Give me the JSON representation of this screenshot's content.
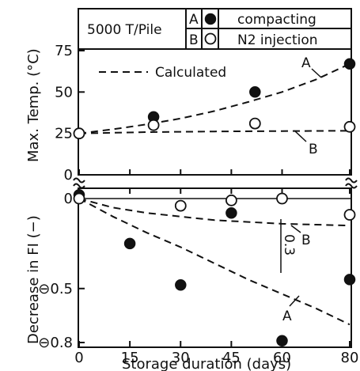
{
  "chart_data": [
    {
      "type": "scatter",
      "panel": "top",
      "ylabel": "Max. Temp. (°C)",
      "ylim": [
        0,
        80
      ],
      "yticks": [
        "0",
        "25",
        "50",
        "75"
      ],
      "legend": {
        "title": "5000 T/Pile",
        "entries": [
          {
            "key": "A",
            "marker": "filled-circle",
            "label": "compacting"
          },
          {
            "key": "B",
            "marker": "open-circle",
            "label": "N2 injection"
          }
        ]
      },
      "annotations": {
        "calculated": "Calculated",
        "curve_a": "A",
        "curve_b": "B"
      },
      "series": [
        {
          "name": "A",
          "marker": "filled",
          "points": [
            [
              0,
              25
            ],
            [
              22,
              35
            ],
            [
              52,
              50
            ],
            [
              80,
              67
            ]
          ]
        },
        {
          "name": "B",
          "marker": "open",
          "points": [
            [
              0,
              25
            ],
            [
              22,
              30
            ],
            [
              52,
              31
            ],
            [
              80,
              29
            ]
          ]
        }
      ],
      "curves": [
        {
          "name": "A",
          "points": [
            [
              0,
              25
            ],
            [
              10,
              27.5
            ],
            [
              20,
              30.5
            ],
            [
              30,
              34
            ],
            [
              40,
              38.5
            ],
            [
              50,
              44
            ],
            [
              60,
              50
            ],
            [
              70,
              57.5
            ],
            [
              80,
              67
            ]
          ]
        },
        {
          "name": "B",
          "points": [
            [
              0,
              25
            ],
            [
              20,
              25.8
            ],
            [
              40,
              26.2
            ],
            [
              60,
              26.4
            ],
            [
              80,
              26.6
            ]
          ]
        }
      ]
    },
    {
      "type": "scatter",
      "panel": "bottom",
      "xlabel": "Storage duration (days)",
      "ylabel": "Decrease in FI (−)",
      "xlim": [
        0,
        80
      ],
      "ylim": [
        0,
        0.82
      ],
      "xticks": [
        "0",
        "15",
        "30",
        "45",
        "60",
        "80"
      ],
      "yticks": [
        "0",
        "⊖0.5",
        "⊖0.8"
      ],
      "annotations": {
        "gap": "0.3",
        "curve_a": "A",
        "curve_b": "B"
      },
      "series": [
        {
          "name": "A",
          "marker": "filled",
          "points": [
            [
              0,
              -0.02
            ],
            [
              15,
              0.25
            ],
            [
              30,
              0.48
            ],
            [
              45,
              0.08
            ],
            [
              60,
              0.79
            ],
            [
              80,
              0.45
            ]
          ]
        },
        {
          "name": "B",
          "marker": "open",
          "points": [
            [
              0,
              0
            ],
            [
              30,
              0.04
            ],
            [
              45,
              0.01
            ],
            [
              60,
              0.0
            ],
            [
              80,
              0.09
            ]
          ]
        }
      ],
      "curves": [
        {
          "name": "A",
          "points": [
            [
              0,
              0
            ],
            [
              10,
              0.1
            ],
            [
              20,
              0.19
            ],
            [
              30,
              0.27
            ],
            [
              40,
              0.36
            ],
            [
              50,
              0.45
            ],
            [
              60,
              0.53
            ],
            [
              70,
              0.61
            ],
            [
              80,
              0.7
            ]
          ]
        },
        {
          "name": "B",
          "points": [
            [
              0,
              0
            ],
            [
              10,
              0.05
            ],
            [
              20,
              0.08
            ],
            [
              30,
              0.1
            ],
            [
              40,
              0.12
            ],
            [
              50,
              0.13
            ],
            [
              60,
              0.14
            ],
            [
              70,
              0.145
            ],
            [
              80,
              0.15
            ]
          ]
        }
      ]
    }
  ]
}
